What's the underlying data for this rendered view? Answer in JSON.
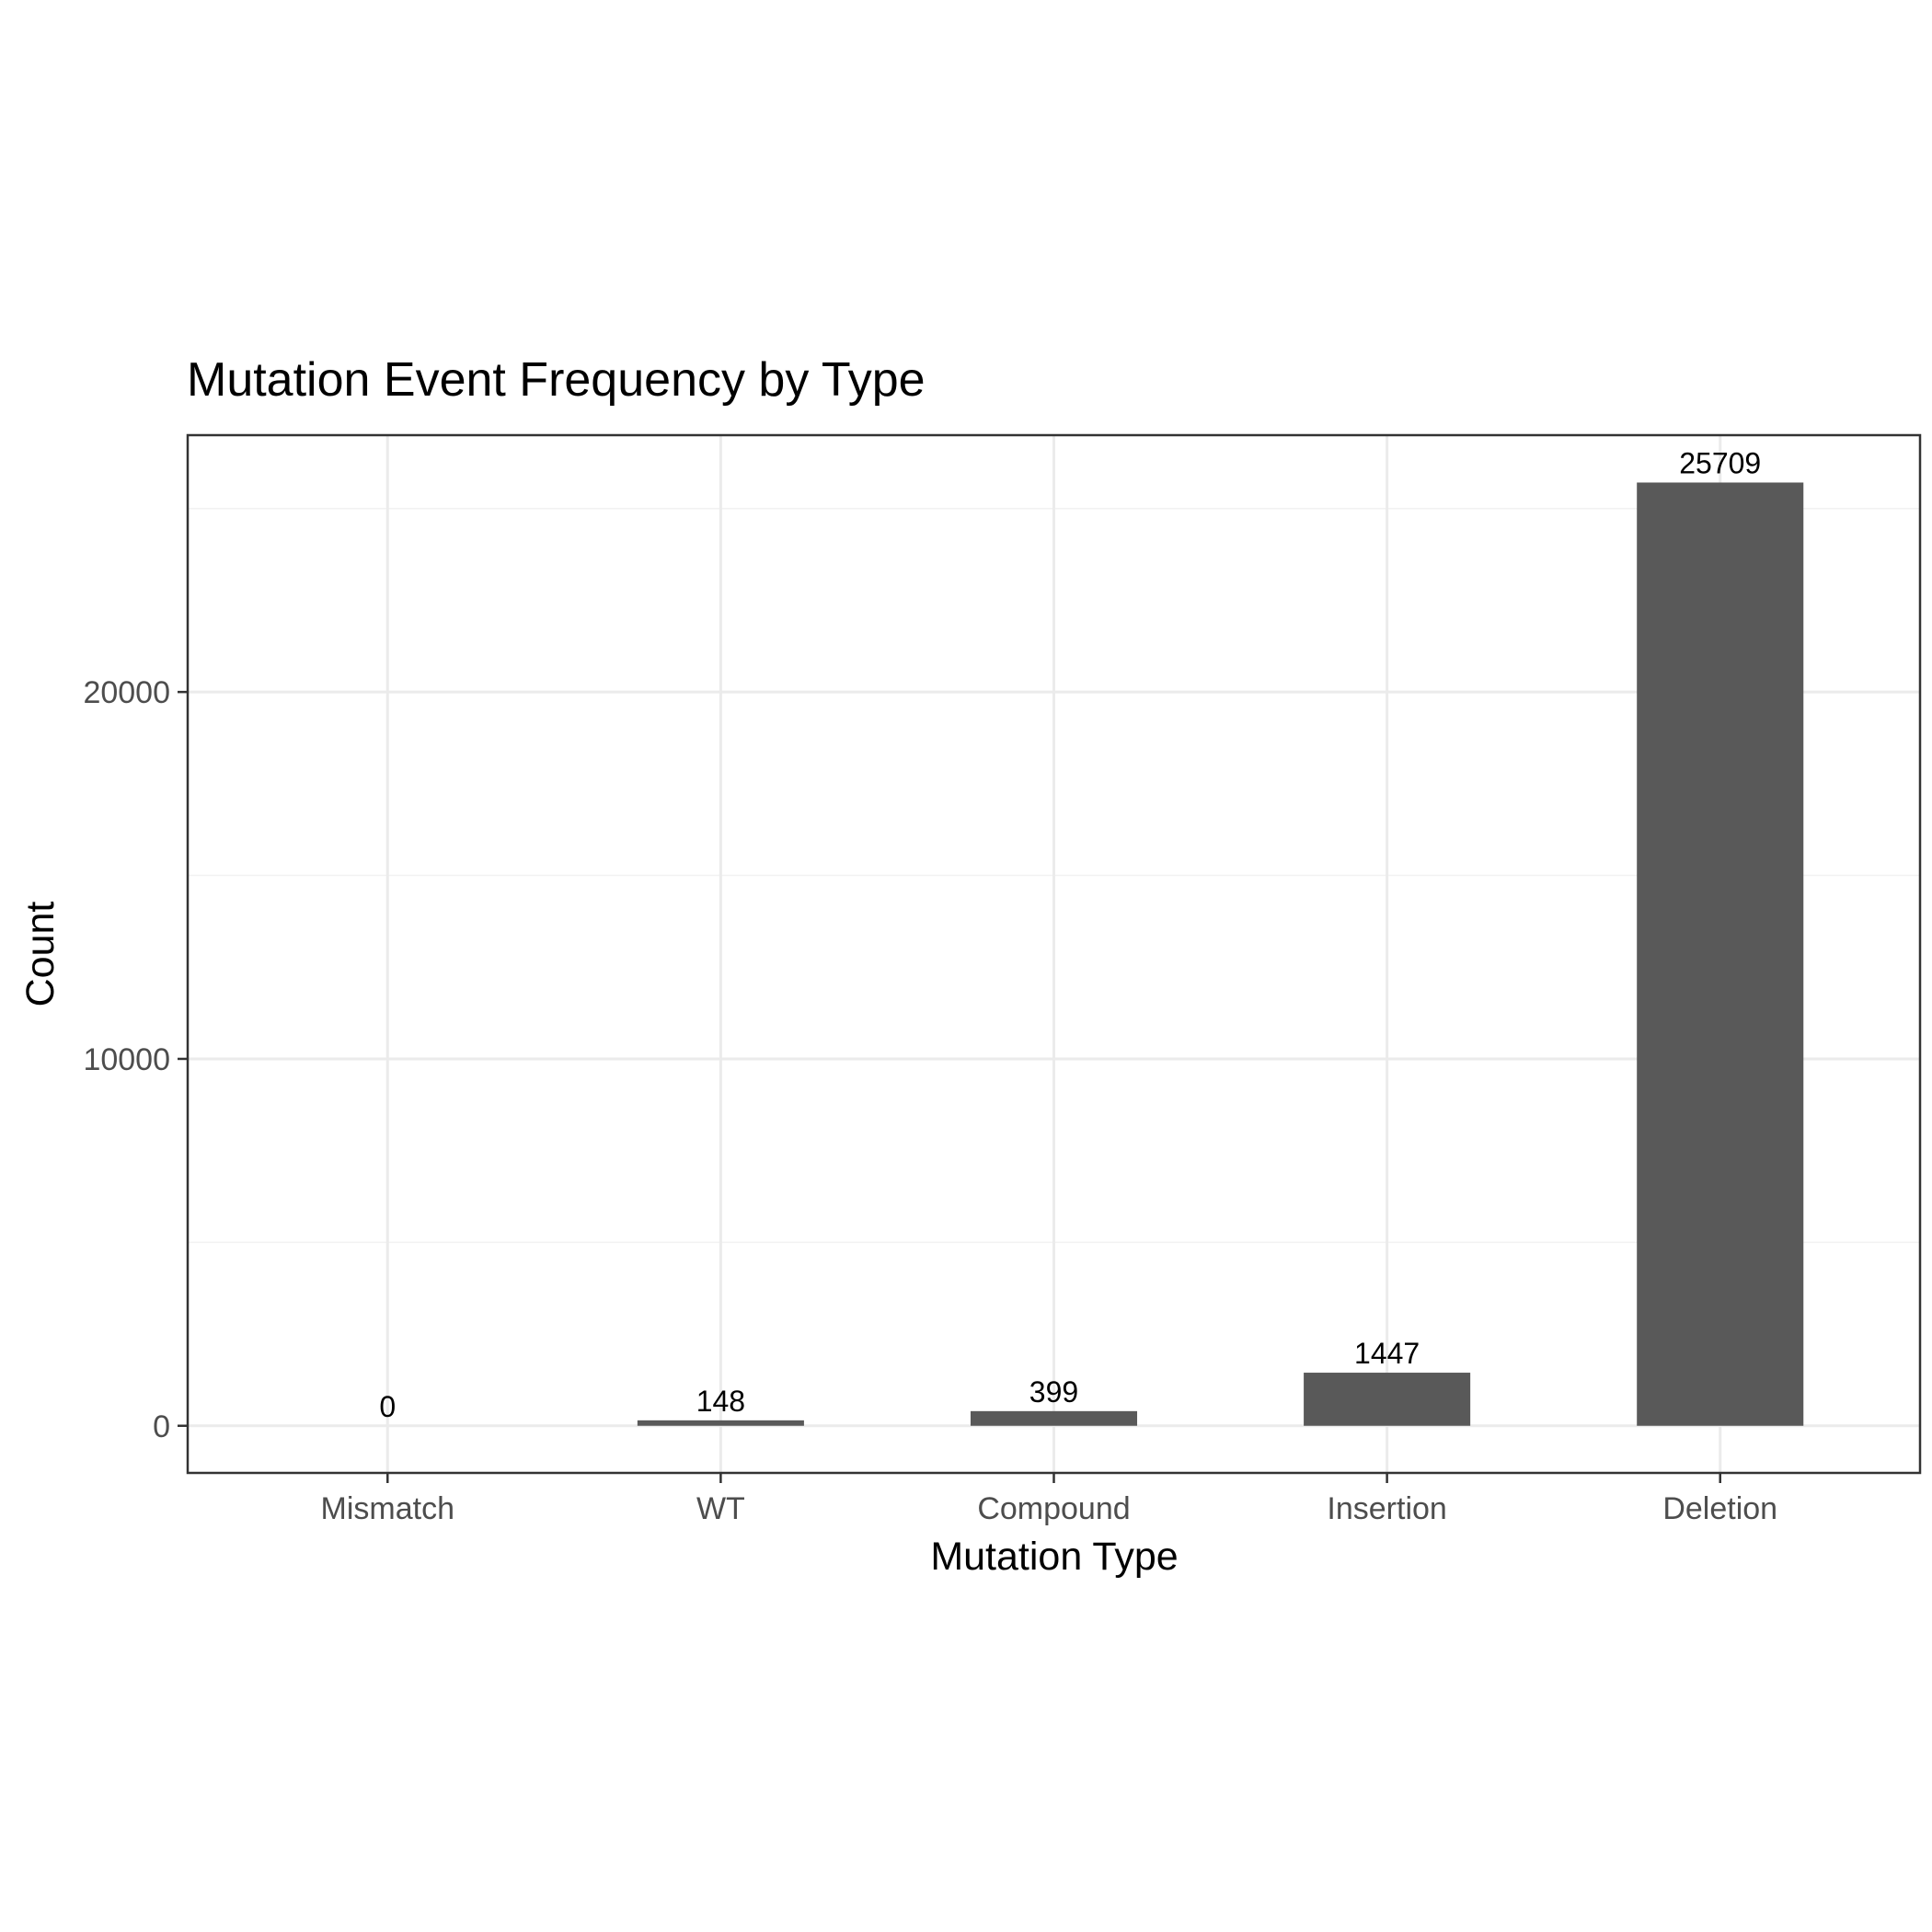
{
  "chart_data": {
    "type": "bar",
    "title": "Mutation Event Frequency by Type",
    "xlabel": "Mutation Type",
    "ylabel": "Count",
    "categories": [
      "Mismatch",
      "WT",
      "Compound",
      "Insertion",
      "Deletion"
    ],
    "values": [
      0,
      148,
      399,
      1447,
      25709
    ],
    "data_labels": [
      "0",
      "148",
      "399",
      "1447",
      "25709"
    ],
    "y_ticks": [
      0,
      10000,
      20000
    ],
    "y_tick_labels": [
      "0",
      "10000",
      "20000"
    ],
    "y_minor_ticks": [
      5000,
      15000,
      25000
    ],
    "ylim": [
      -1285,
      27000
    ],
    "grid": true,
    "legend": "none",
    "bar_color": "#595959"
  }
}
